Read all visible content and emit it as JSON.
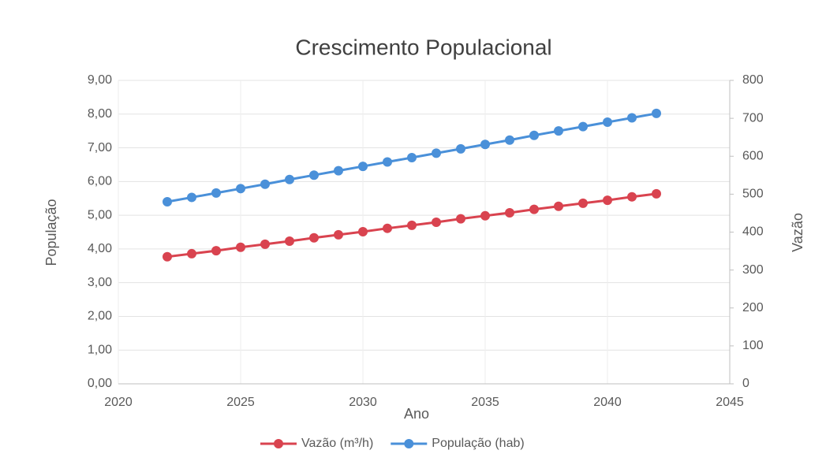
{
  "chart_data": {
    "type": "line",
    "title": "Crescimento Populacional",
    "xlabel": "Ano",
    "ylabel": "População",
    "y2label": "Vazão",
    "x": [
      2022,
      2023,
      2024,
      2025,
      2026,
      2027,
      2028,
      2029,
      2030,
      2031,
      2032,
      2033,
      2034,
      2035,
      2036,
      2037,
      2038,
      2039,
      2040,
      2041,
      2042
    ],
    "series": [
      {
        "name": "Vazão (m³/h)",
        "color": "#d9434f",
        "axis": "y2",
        "values": [
          335,
          343,
          351,
          360,
          368,
          376,
          385,
          393,
          401,
          410,
          418,
          426,
          435,
          443,
          451,
          460,
          468,
          476,
          484,
          493,
          501
        ]
      },
      {
        "name": "População (hab)",
        "color": "#4a90d9",
        "values": [
          5.4,
          5.53,
          5.66,
          5.79,
          5.92,
          6.06,
          6.19,
          6.32,
          6.45,
          6.58,
          6.71,
          6.84,
          6.97,
          7.1,
          7.23,
          7.37,
          7.5,
          7.63,
          7.76,
          7.89,
          8.02
        ]
      }
    ],
    "xlim": [
      2020,
      2045
    ],
    "xticks": [
      2020,
      2025,
      2030,
      2035,
      2040,
      2045
    ],
    "ylim": [
      0,
      9
    ],
    "yticks": [
      {
        "value": 0,
        "label": "0,00"
      },
      {
        "value": 1,
        "label": "1,00"
      },
      {
        "value": 2,
        "label": "2,00"
      },
      {
        "value": 3,
        "label": "3,00"
      },
      {
        "value": 4,
        "label": "4,00"
      },
      {
        "value": 5,
        "label": "5,00"
      },
      {
        "value": 6,
        "label": "6,00"
      },
      {
        "value": 7,
        "label": "7,00"
      },
      {
        "value": 8,
        "label": "8,00"
      },
      {
        "value": 9,
        "label": "9,00"
      }
    ],
    "y2lim": [
      0,
      800
    ],
    "y2ticks": [
      0,
      100,
      200,
      300,
      400,
      500,
      600,
      700,
      800
    ],
    "grid": true,
    "legend": "bottom"
  }
}
